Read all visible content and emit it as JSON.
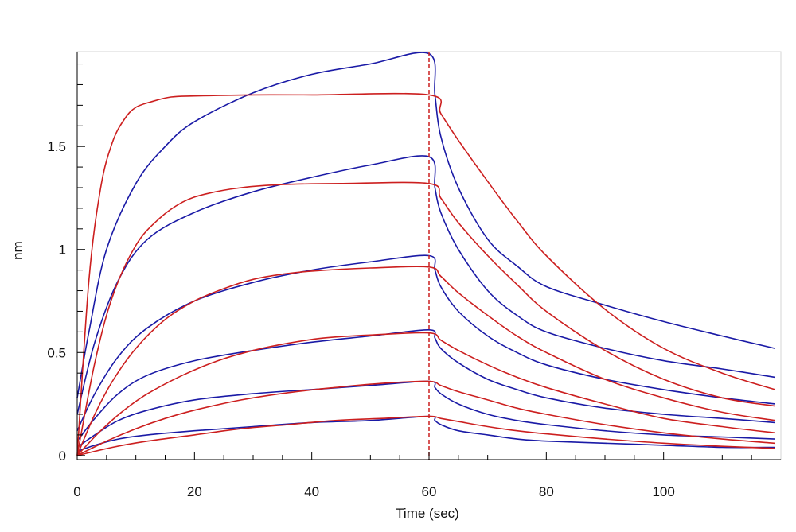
{
  "chart_data": {
    "type": "line",
    "title": "",
    "xlabel": "Time (sec)",
    "ylabel": "nm",
    "xlim": [
      0,
      120
    ],
    "ylim": [
      -0.02,
      1.96
    ],
    "x_ticks": [
      0,
      20,
      40,
      60,
      80,
      100
    ],
    "x_tick_labels": [
      "0",
      "20",
      "40",
      "60",
      "80",
      "100"
    ],
    "y_ticks": [
      0,
      0.5,
      1,
      1.5
    ],
    "y_tick_labels": [
      "0",
      "0.5",
      "1",
      "1.5"
    ],
    "grid": false,
    "legend": "none",
    "vertical_marker_x": 60,
    "colors": {
      "measured": "#1a1aa6",
      "fitted": "#cc1f1f",
      "marker": "#cc1f1f"
    },
    "series": [
      {
        "role": "measured",
        "color": "#1a1aa6",
        "points": [
          [
            0,
            0.28
          ],
          [
            2,
            0.6
          ],
          [
            5,
            1.0
          ],
          [
            10,
            1.32
          ],
          [
            15,
            1.5
          ],
          [
            20,
            1.62
          ],
          [
            30,
            1.76
          ],
          [
            40,
            1.85
          ],
          [
            50,
            1.9
          ],
          [
            60,
            1.95
          ],
          [
            61,
            1.75
          ],
          [
            62,
            1.55
          ],
          [
            65,
            1.3
          ],
          [
            70,
            1.05
          ],
          [
            75,
            0.92
          ],
          [
            80,
            0.82
          ],
          [
            90,
            0.73
          ],
          [
            100,
            0.65
          ],
          [
            110,
            0.58
          ],
          [
            119,
            0.52
          ]
        ]
      },
      {
        "role": "measured",
        "color": "#1a1aa6",
        "points": [
          [
            0,
            0.2
          ],
          [
            3,
            0.55
          ],
          [
            7,
            0.85
          ],
          [
            12,
            1.05
          ],
          [
            20,
            1.18
          ],
          [
            30,
            1.28
          ],
          [
            40,
            1.35
          ],
          [
            50,
            1.41
          ],
          [
            60,
            1.45
          ],
          [
            61,
            1.3
          ],
          [
            62,
            1.18
          ],
          [
            65,
            1.0
          ],
          [
            70,
            0.8
          ],
          [
            75,
            0.68
          ],
          [
            80,
            0.6
          ],
          [
            90,
            0.52
          ],
          [
            100,
            0.46
          ],
          [
            110,
            0.42
          ],
          [
            119,
            0.38
          ]
        ]
      },
      {
        "role": "measured",
        "color": "#1a1aa6",
        "points": [
          [
            0,
            0.12
          ],
          [
            3,
            0.3
          ],
          [
            7,
            0.48
          ],
          [
            12,
            0.62
          ],
          [
            20,
            0.75
          ],
          [
            30,
            0.84
          ],
          [
            40,
            0.9
          ],
          [
            50,
            0.94
          ],
          [
            60,
            0.97
          ],
          [
            61,
            0.9
          ],
          [
            62,
            0.82
          ],
          [
            65,
            0.7
          ],
          [
            70,
            0.58
          ],
          [
            75,
            0.5
          ],
          [
            80,
            0.44
          ],
          [
            90,
            0.37
          ],
          [
            100,
            0.32
          ],
          [
            110,
            0.28
          ],
          [
            119,
            0.25
          ]
        ]
      },
      {
        "role": "measured",
        "color": "#1a1aa6",
        "points": [
          [
            0,
            0.07
          ],
          [
            3,
            0.18
          ],
          [
            7,
            0.3
          ],
          [
            12,
            0.39
          ],
          [
            20,
            0.46
          ],
          [
            30,
            0.51
          ],
          [
            40,
            0.55
          ],
          [
            50,
            0.58
          ],
          [
            60,
            0.61
          ],
          [
            61,
            0.57
          ],
          [
            62,
            0.52
          ],
          [
            65,
            0.45
          ],
          [
            70,
            0.37
          ],
          [
            75,
            0.32
          ],
          [
            80,
            0.28
          ],
          [
            90,
            0.23
          ],
          [
            100,
            0.2
          ],
          [
            110,
            0.18
          ],
          [
            119,
            0.16
          ]
        ]
      },
      {
        "role": "measured",
        "color": "#1a1aa6",
        "points": [
          [
            0,
            0.04
          ],
          [
            3,
            0.1
          ],
          [
            7,
            0.17
          ],
          [
            12,
            0.22
          ],
          [
            20,
            0.27
          ],
          [
            30,
            0.3
          ],
          [
            40,
            0.32
          ],
          [
            50,
            0.34
          ],
          [
            60,
            0.36
          ],
          [
            61,
            0.33
          ],
          [
            62,
            0.3
          ],
          [
            65,
            0.25
          ],
          [
            70,
            0.2
          ],
          [
            75,
            0.17
          ],
          [
            80,
            0.15
          ],
          [
            90,
            0.12
          ],
          [
            100,
            0.1
          ],
          [
            110,
            0.09
          ],
          [
            119,
            0.08
          ]
        ]
      },
      {
        "role": "measured",
        "color": "#1a1aa6",
        "points": [
          [
            0,
            0.02
          ],
          [
            3,
            0.05
          ],
          [
            7,
            0.08
          ],
          [
            12,
            0.1
          ],
          [
            20,
            0.12
          ],
          [
            30,
            0.14
          ],
          [
            40,
            0.16
          ],
          [
            50,
            0.17
          ],
          [
            60,
            0.19
          ],
          [
            61,
            0.17
          ],
          [
            62,
            0.15
          ],
          [
            65,
            0.12
          ],
          [
            70,
            0.1
          ],
          [
            75,
            0.08
          ],
          [
            80,
            0.07
          ],
          [
            90,
            0.06
          ],
          [
            100,
            0.05
          ],
          [
            110,
            0.04
          ],
          [
            119,
            0.04
          ]
        ]
      },
      {
        "role": "fitted",
        "color": "#cc1f1f",
        "points": [
          [
            0,
            0.0
          ],
          [
            2,
            0.85
          ],
          [
            4,
            1.3
          ],
          [
            6,
            1.52
          ],
          [
            8,
            1.63
          ],
          [
            10,
            1.69
          ],
          [
            13,
            1.72
          ],
          [
            16,
            1.74
          ],
          [
            20,
            1.745
          ],
          [
            30,
            1.75
          ],
          [
            40,
            1.75
          ],
          [
            60,
            1.75
          ],
          [
            62,
            1.66
          ],
          [
            65,
            1.53
          ],
          [
            70,
            1.33
          ],
          [
            75,
            1.14
          ],
          [
            80,
            0.97
          ],
          [
            90,
            0.71
          ],
          [
            100,
            0.52
          ],
          [
            110,
            0.4
          ],
          [
            119,
            0.32
          ]
        ]
      },
      {
        "role": "fitted",
        "color": "#cc1f1f",
        "points": [
          [
            0,
            0.0
          ],
          [
            3,
            0.45
          ],
          [
            6,
            0.77
          ],
          [
            10,
            1.02
          ],
          [
            14,
            1.15
          ],
          [
            18,
            1.23
          ],
          [
            22,
            1.27
          ],
          [
            28,
            1.3
          ],
          [
            35,
            1.315
          ],
          [
            45,
            1.32
          ],
          [
            60,
            1.32
          ],
          [
            62,
            1.25
          ],
          [
            65,
            1.13
          ],
          [
            70,
            0.97
          ],
          [
            75,
            0.83
          ],
          [
            80,
            0.7
          ],
          [
            90,
            0.51
          ],
          [
            100,
            0.37
          ],
          [
            110,
            0.28
          ],
          [
            119,
            0.24
          ]
        ]
      },
      {
        "role": "fitted",
        "color": "#cc1f1f",
        "points": [
          [
            0,
            0.0
          ],
          [
            3,
            0.2
          ],
          [
            6,
            0.36
          ],
          [
            10,
            0.52
          ],
          [
            15,
            0.66
          ],
          [
            20,
            0.75
          ],
          [
            25,
            0.81
          ],
          [
            30,
            0.855
          ],
          [
            35,
            0.88
          ],
          [
            40,
            0.895
          ],
          [
            50,
            0.91
          ],
          [
            60,
            0.915
          ],
          [
            62,
            0.87
          ],
          [
            65,
            0.79
          ],
          [
            70,
            0.68
          ],
          [
            75,
            0.58
          ],
          [
            80,
            0.5
          ],
          [
            90,
            0.37
          ],
          [
            100,
            0.28
          ],
          [
            110,
            0.21
          ],
          [
            119,
            0.17
          ]
        ]
      },
      {
        "role": "fitted",
        "color": "#cc1f1f",
        "points": [
          [
            0,
            0.0
          ],
          [
            4,
            0.12
          ],
          [
            8,
            0.22
          ],
          [
            12,
            0.3
          ],
          [
            18,
            0.39
          ],
          [
            24,
            0.46
          ],
          [
            30,
            0.51
          ],
          [
            36,
            0.545
          ],
          [
            42,
            0.57
          ],
          [
            50,
            0.585
          ],
          [
            60,
            0.595
          ],
          [
            62,
            0.56
          ],
          [
            65,
            0.51
          ],
          [
            70,
            0.44
          ],
          [
            75,
            0.38
          ],
          [
            80,
            0.33
          ],
          [
            90,
            0.25
          ],
          [
            100,
            0.18
          ],
          [
            110,
            0.14
          ],
          [
            119,
            0.11
          ]
        ]
      },
      {
        "role": "fitted",
        "color": "#cc1f1f",
        "points": [
          [
            0,
            0.0
          ],
          [
            5,
            0.07
          ],
          [
            10,
            0.13
          ],
          [
            15,
            0.18
          ],
          [
            20,
            0.22
          ],
          [
            28,
            0.27
          ],
          [
            36,
            0.305
          ],
          [
            44,
            0.33
          ],
          [
            52,
            0.35
          ],
          [
            60,
            0.36
          ],
          [
            62,
            0.34
          ],
          [
            65,
            0.31
          ],
          [
            70,
            0.27
          ],
          [
            75,
            0.23
          ],
          [
            80,
            0.2
          ],
          [
            90,
            0.15
          ],
          [
            100,
            0.11
          ],
          [
            110,
            0.08
          ],
          [
            119,
            0.06
          ]
        ]
      },
      {
        "role": "fitted",
        "color": "#cc1f1f",
        "points": [
          [
            0,
            0.0
          ],
          [
            6,
            0.04
          ],
          [
            12,
            0.07
          ],
          [
            20,
            0.1
          ],
          [
            28,
            0.13
          ],
          [
            36,
            0.15
          ],
          [
            44,
            0.17
          ],
          [
            52,
            0.18
          ],
          [
            60,
            0.19
          ],
          [
            62,
            0.18
          ],
          [
            65,
            0.165
          ],
          [
            70,
            0.14
          ],
          [
            75,
            0.12
          ],
          [
            80,
            0.105
          ],
          [
            90,
            0.08
          ],
          [
            100,
            0.06
          ],
          [
            110,
            0.045
          ],
          [
            119,
            0.035
          ]
        ]
      }
    ]
  }
}
